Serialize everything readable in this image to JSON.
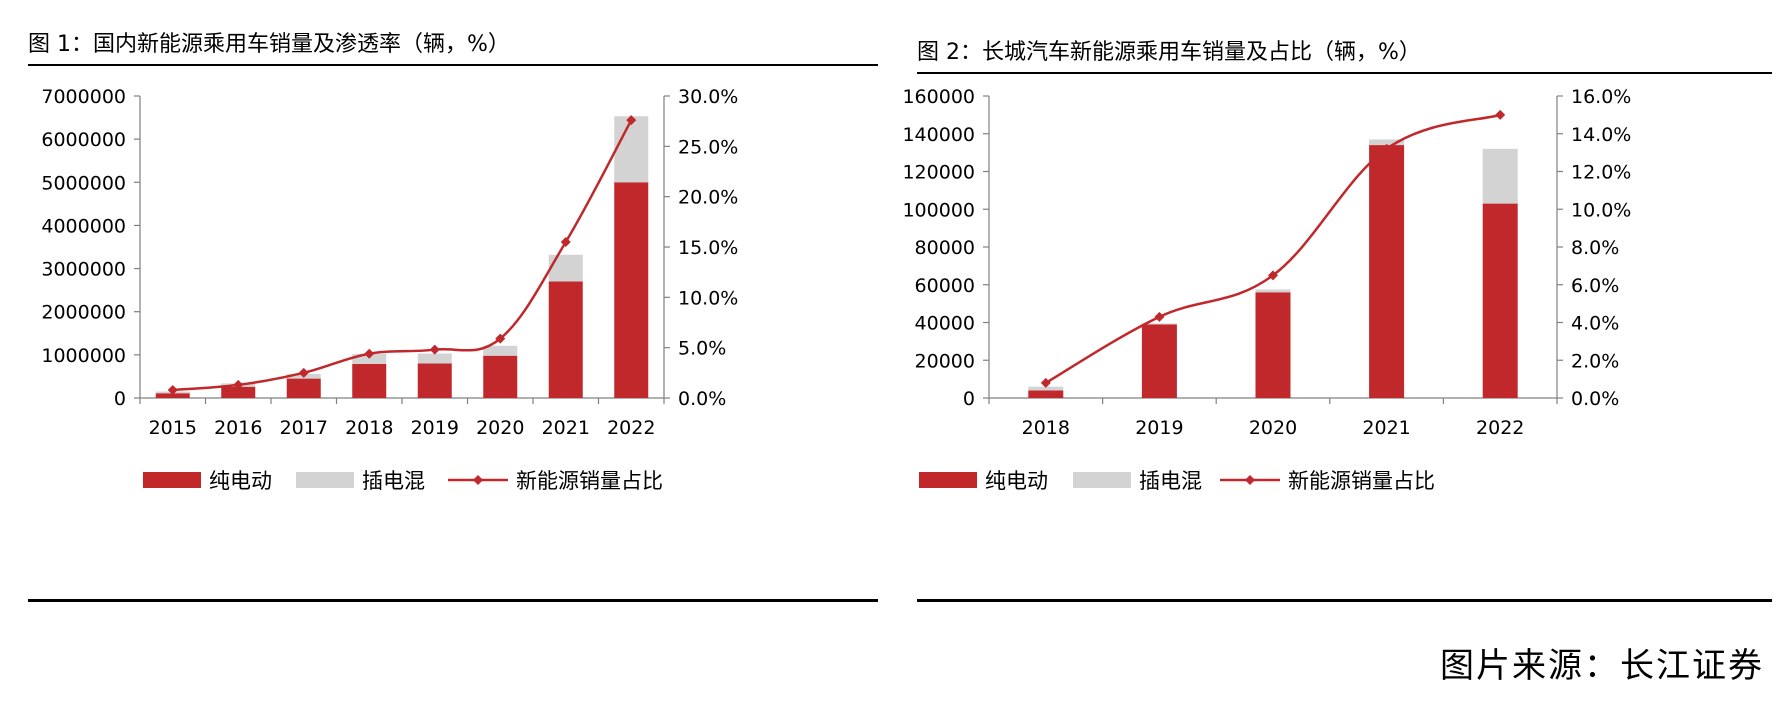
{
  "charts": [
    {
      "title": "图  1：国内新能源乘用车销量及渗透率（辆，%）",
      "legend": {
        "bev": "纯电动",
        "phev": "插电混",
        "share": "新能源销量占比"
      },
      "chart_data": {
        "type": "bar",
        "stacked": true,
        "title": "图  1：国内新能源乘用车销量及渗透率（辆，%）",
        "categories": [
          "2015",
          "2016",
          "2017",
          "2018",
          "2019",
          "2020",
          "2021",
          "2022"
        ],
        "series": [
          {
            "name": "纯电动",
            "type": "bar",
            "axis": "left",
            "color": "#c0282b",
            "values": [
              110000,
              260000,
              450000,
              790000,
              800000,
              980000,
              2700000,
              5000000
            ]
          },
          {
            "name": "插电混",
            "type": "bar",
            "axis": "left",
            "color": "#d3d3d3",
            "values": [
              40000,
              80000,
              110000,
              230000,
              230000,
              230000,
              620000,
              1530000
            ]
          },
          {
            "name": "新能源销量占比",
            "type": "line",
            "axis": "right",
            "color": "#c0282b",
            "values": [
              0.8,
              1.3,
              2.5,
              4.4,
              4.8,
              5.9,
              15.5,
              27.6
            ]
          }
        ],
        "y_left": {
          "min": 0,
          "max": 7000000,
          "ticks": [
            0,
            1000000,
            2000000,
            3000000,
            4000000,
            5000000,
            6000000,
            7000000
          ],
          "tick_labels": [
            "0",
            "1000000",
            "2000000",
            "3000000",
            "4000000",
            "5000000",
            "6000000",
            "7000000"
          ]
        },
        "y_right": {
          "min": 0,
          "max": 30,
          "ticks": [
            0,
            5,
            10,
            15,
            20,
            25,
            30
          ],
          "tick_labels": [
            "0.0%",
            "5.0%",
            "10.0%",
            "15.0%",
            "20.0%",
            "25.0%",
            "30.0%"
          ]
        },
        "grid": false,
        "legend_position": "bottom"
      }
    },
    {
      "title": "图  2：长城汽车新能源乘用车销量及占比（辆，%）",
      "legend": {
        "bev": "纯电动",
        "phev": "插电混",
        "share": "新能源销量占比"
      },
      "chart_data": {
        "type": "bar",
        "stacked": true,
        "title": "图  2：长城汽车新能源乘用车销量及占比（辆，%）",
        "categories": [
          "2018",
          "2019",
          "2020",
          "2021",
          "2022"
        ],
        "series": [
          {
            "name": "纯电动",
            "type": "bar",
            "axis": "left",
            "color": "#c0282b",
            "values": [
              4000,
              39000,
              56000,
              134000,
              103000
            ]
          },
          {
            "name": "插电混",
            "type": "bar",
            "axis": "left",
            "color": "#d3d3d3",
            "values": [
              2000,
              500,
              1500,
              3000,
              29000
            ]
          },
          {
            "name": "新能源销量占比",
            "type": "line",
            "axis": "right",
            "color": "#c0282b",
            "values": [
              0.8,
              4.3,
              6.5,
              13.2,
              15.0
            ]
          }
        ],
        "y_left": {
          "min": 0,
          "max": 160000,
          "ticks": [
            0,
            20000,
            40000,
            60000,
            80000,
            100000,
            120000,
            140000,
            160000
          ],
          "tick_labels": [
            "0",
            "20000",
            "40000",
            "60000",
            "80000",
            "100000",
            "120000",
            "140000",
            "160000"
          ]
        },
        "y_right": {
          "min": 0,
          "max": 16,
          "ticks": [
            0,
            2,
            4,
            6,
            8,
            10,
            12,
            14,
            16
          ],
          "tick_labels": [
            "0.0%",
            "2.0%",
            "4.0%",
            "6.0%",
            "8.0%",
            "10.0%",
            "12.0%",
            "14.0%",
            "16.0%"
          ]
        },
        "grid": false,
        "legend_position": "bottom"
      }
    }
  ],
  "source": "图片来源：长江证券"
}
